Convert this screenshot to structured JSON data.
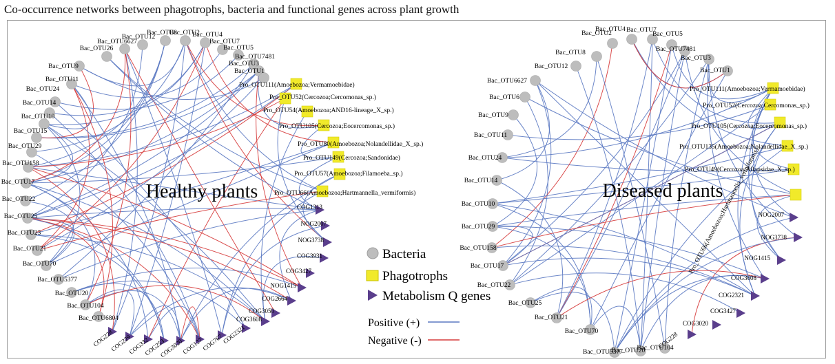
{
  "caption": "Co-occurrence networks between phagotrophs, bacteria and functional genes across plant growth",
  "colors": {
    "positive": "#5b79c2",
    "negative": "#d63b3b",
    "bacteria": "#bdbdbd",
    "phagotroph": "#f1ea2a",
    "gene": "#5a3e8c"
  },
  "legend": {
    "bacteria": "Bacteria",
    "phagotrophs": "Phagotrophs",
    "genes": "Metabolism Q genes",
    "positive": "Positive (+)",
    "negative": "Negative (-)"
  },
  "healthy": {
    "title": "Healthy plants",
    "bacteria": [
      "Bac_OTU26",
      "Bac_OTU6627",
      "Bac_OTU12",
      "Bac_OTU8",
      "Bac_OTU2",
      "Bac_OTU4",
      "Bac_OTU7",
      "Bac_OTU5",
      "Bac_OTU7481",
      "Bac_OTU3",
      "Bac_OTU1",
      "Bac_OTU9",
      "Bac_OTU11",
      "Bac_OTU24",
      "Bac_OTU14",
      "Bac_OTU10",
      "Bac_OTU15",
      "Bac_OTU29",
      "Bac_OTU158",
      "Bac_OTU17",
      "Bac_OTU22",
      "Bac_OTU25",
      "Bac_OTU23",
      "Bac_OTU21",
      "Bac_OTU70",
      "Bac_OTU5377",
      "Bac_OTU20",
      "Bac_OTU104",
      "Bac_OTU6804"
    ],
    "phagotrophs": [
      "Pro_OTU111(Amoebozoa;Vermamoebidae)",
      "Pro_OTU52(Cercozoa;Cercomonas_sp.)",
      "Pro_OTU54(Amoebozoa;AND16-lineage_X_sp.)",
      "Pro_OTU105(Cercozoa;Eocercomonas_sp.)",
      "Pro_OTU80(Amoebozoa;Nolandellidae_X_sp.)",
      "Pro_OTU149(Cercozoa;Sandonidae)",
      "Pro_OTU57(Amoebozoa;Filamoeba_sp.)",
      "Pro_OTU66(Amoebozoa;Hartmannella_vermiformis)"
    ],
    "genes": [
      "COG1313",
      "NOG2007",
      "NOG3738",
      "COG3931",
      "COG3427",
      "NOG1415",
      "COG2664",
      "COG3050",
      "COG3608",
      "COG2321",
      "COG767",
      "COG127",
      "COG3020",
      "COG253",
      "COG332",
      "COG229",
      "COG228"
    ]
  },
  "diseased": {
    "title": "Diseased plants",
    "bacteria": [
      "Bac_OTU8",
      "Bac_OTU2",
      "Bac_OTU4",
      "Bac_OTU7",
      "Bac_OTU5",
      "Bac_OTU7481",
      "Bac_OTU3",
      "Bac_OTU1",
      "Bac_OTU12",
      "Bac_OTU6627",
      "Bac_OTU6",
      "Bac_OTU9",
      "Bac_OTU11",
      "Bac_OTU24",
      "Bac_OTU14",
      "Bac_OTU10",
      "Bac_OTU29",
      "Bac_OTU158",
      "Bac_OTU17",
      "Bac_OTU22",
      "Bac_OTU25",
      "Bac_OTU21",
      "Bac_OTU70",
      "Bac_OTU5377",
      "Bac_OTU20",
      "Bac_OTU104",
      "Bac_OTU6804"
    ],
    "phagotrophs": [
      "Pro_OTU111(Amoebozoa;Vermamoebidae)",
      "Pro_OTU52(Cercozoa;Cercomonas_sp.)",
      "Pro_OTU105(Cercozoa;Eocercomonas_sp.)",
      "Pro_OTU135(Amoebozoa;Nolandellidae_X_sp.)",
      "Pro_OTU49(Cercozoa;Allapsidae_X_sp.)",
      "Pro_OTU66(Amoebozoa;Hartmannella_vermiformis)"
    ],
    "genes": [
      "NOG2007",
      "NOG3738",
      "NOG1415",
      "COG3608",
      "COG2321",
      "COG3427",
      "COG3020",
      "COG228"
    ]
  }
}
